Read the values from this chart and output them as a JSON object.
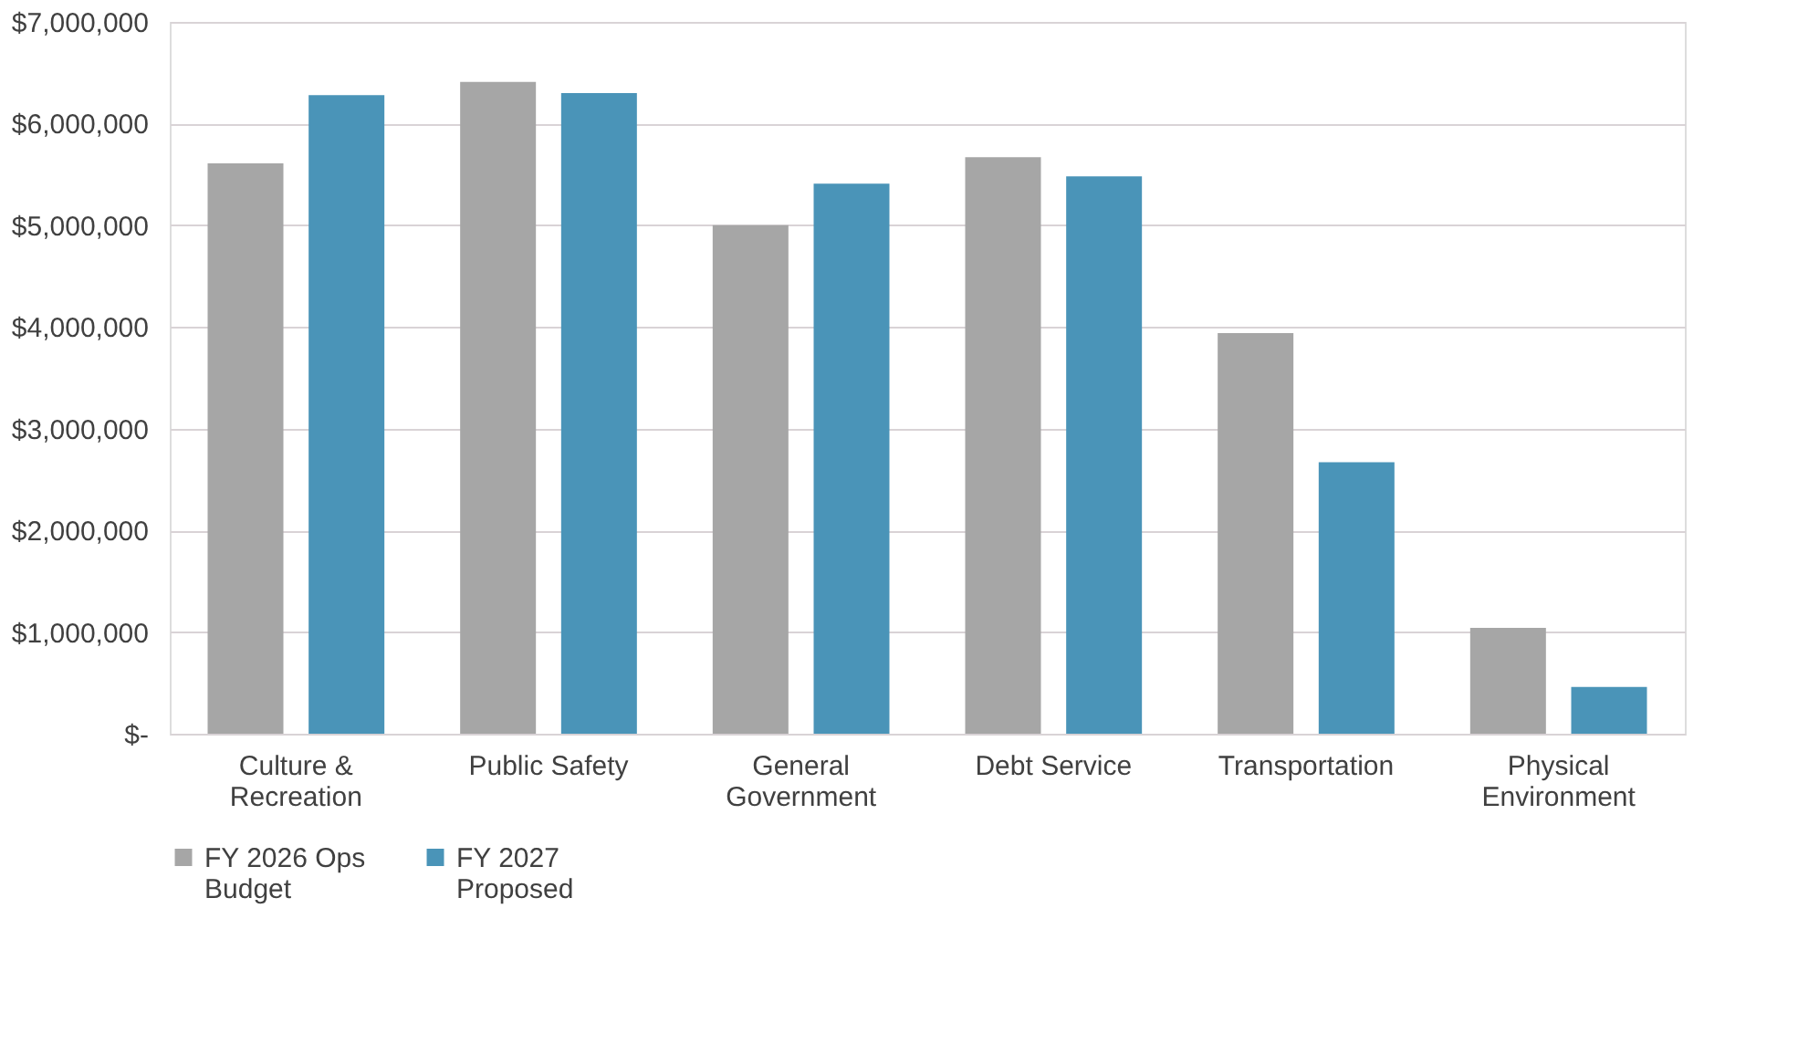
{
  "chart_data": {
    "type": "bar",
    "categories": [
      "Culture & Recreation",
      "Public Safety",
      "General Government",
      "Debt Service",
      "Transportation",
      "Physical Environment"
    ],
    "series": [
      {
        "name": "FY 2026 Ops Budget",
        "color": "#a6a6a6",
        "values": [
          5610000,
          6410000,
          5000000,
          5670000,
          3940000,
          1040000
        ]
      },
      {
        "name": "FY 2027 Proposed",
        "color": "#4a94b8",
        "values": [
          6280000,
          6300000,
          5410000,
          5480000,
          2670000,
          460000
        ]
      }
    ],
    "ylim": [
      0,
      7000000
    ],
    "yticks": [
      {
        "value": 0,
        "label": "$-"
      },
      {
        "value": 1000000,
        "label": "$1,000,000"
      },
      {
        "value": 2000000,
        "label": "$2,000,000"
      },
      {
        "value": 3000000,
        "label": "$3,000,000"
      },
      {
        "value": 4000000,
        "label": "$4,000,000"
      },
      {
        "value": 5000000,
        "label": "$5,000,000"
      },
      {
        "value": 6000000,
        "label": "$6,000,000"
      },
      {
        "value": 7000000,
        "label": "$7,000,000"
      }
    ],
    "grid": "y",
    "legend": "bottom"
  }
}
